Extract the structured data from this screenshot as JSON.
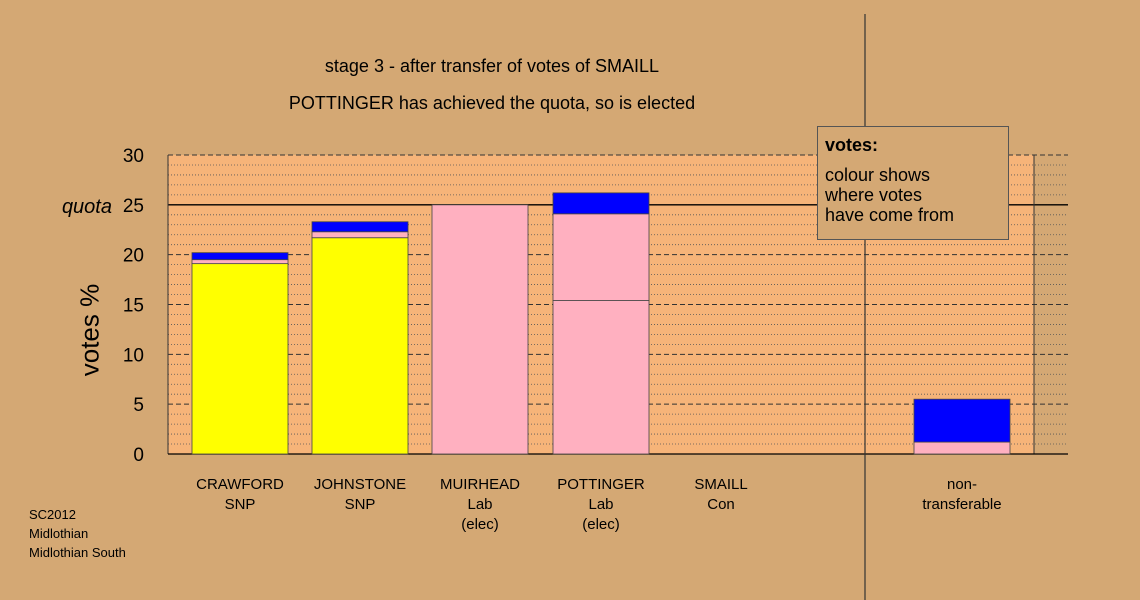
{
  "chart_data": {
    "type": "bar",
    "stacked": true,
    "title": "stage 3 - after transfer of votes of SMAILL",
    "subtitle": "POTTINGER has achieved the quota, so is elected",
    "ylabel": "votes %",
    "ylim": [
      0,
      30
    ],
    "yticks": [
      "0",
      "5",
      "10",
      "15",
      "20",
      "25",
      "30"
    ],
    "quota_label": "quota",
    "quota_value": 25,
    "grid": true,
    "categories": [
      {
        "name": "CRAWFORD",
        "party": "SNP",
        "note": ""
      },
      {
        "name": "JOHNSTONE",
        "party": "SNP",
        "note": ""
      },
      {
        "name": "MUIRHEAD",
        "party": "Lab",
        "note": "(elec)"
      },
      {
        "name": "POTTINGER",
        "party": "Lab",
        "note": "(elec)"
      },
      {
        "name": "SMAILL",
        "party": "Con",
        "note": ""
      },
      {
        "name": "non-",
        "party": "transferable",
        "note": ""
      }
    ],
    "stacks": [
      [
        {
          "value": 19.1,
          "color": "#ffff00"
        },
        {
          "value": 0.4,
          "color": "#ffb0c0"
        },
        {
          "value": 0.7,
          "color": "#0000ff"
        }
      ],
      [
        {
          "value": 21.7,
          "color": "#ffff00"
        },
        {
          "value": 0.6,
          "color": "#ffb0c0"
        },
        {
          "value": 1.0,
          "color": "#0000ff"
        }
      ],
      [
        {
          "value": 25.0,
          "color": "#ffb0c0"
        }
      ],
      [
        {
          "value": 15.4,
          "color": "#ffb0c0"
        },
        {
          "value": 8.7,
          "color": "#ffb0c0"
        },
        {
          "value": 2.1,
          "color": "#0000ff"
        }
      ],
      [],
      [
        {
          "value": 1.2,
          "color": "#ffb0c0"
        },
        {
          "value": 4.3,
          "color": "#0000ff"
        }
      ]
    ],
    "legend": {
      "title": "votes:",
      "lines": [
        "colour shows",
        "where votes",
        "have come from"
      ],
      "position": "top-right"
    }
  },
  "source": [
    "SC2012",
    "Midlothian",
    "Midlothian South"
  ]
}
